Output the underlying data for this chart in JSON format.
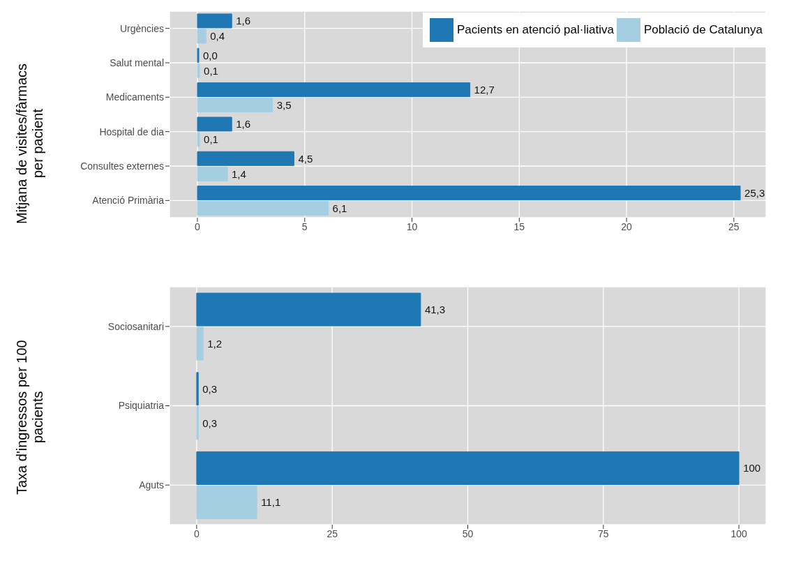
{
  "chart_data": [
    {
      "type": "bar",
      "orientation": "horizontal",
      "ylabel": "Mitjana de visites/fàrmacs per pacient",
      "categories": [
        "Urgències",
        "Salut mental",
        "Medicaments",
        "Hospital de dia",
        "Consultes externes",
        "Atenció Primària"
      ],
      "series": [
        {
          "name": "Pacients en atenció pal·liativa",
          "color": "#1f78b4",
          "values": [
            1.6,
            0.0,
            12.7,
            1.6,
            4.5,
            25.3
          ],
          "value_labels": [
            "1,6",
            "0,0",
            "12,7",
            "1,6",
            "4,5",
            "25,3"
          ]
        },
        {
          "name": "Població de Catalunya",
          "color": "#a6cee3",
          "values": [
            0.4,
            0.1,
            3.5,
            0.1,
            1.4,
            6.1
          ],
          "value_labels": [
            "0,4",
            "0,1",
            "3,5",
            "0,1",
            "1,4",
            "6,1"
          ]
        }
      ],
      "xlim": [
        -1.3,
        26.5
      ],
      "xticks": [
        0,
        5,
        10,
        15,
        20,
        25
      ],
      "grid": true,
      "legend": "top right"
    },
    {
      "type": "bar",
      "orientation": "horizontal",
      "ylabel": "Taxa d'ingressos per 100 pacients",
      "categories": [
        "Sociosanitari",
        "Psiquiatria",
        "Aguts"
      ],
      "series": [
        {
          "color": "#1f78b4",
          "values": [
            41.3,
            0.3,
            100
          ],
          "value_labels": [
            "41,3",
            "0,3",
            "100"
          ]
        },
        {
          "color": "#a6cee3",
          "values": [
            1.2,
            0.3,
            11.1
          ],
          "value_labels": [
            "1,2",
            "0,3",
            "11,1"
          ]
        }
      ],
      "xlim": [
        -5,
        105
      ],
      "xticks": [
        0,
        25,
        50,
        75,
        100
      ],
      "grid": true
    }
  ]
}
